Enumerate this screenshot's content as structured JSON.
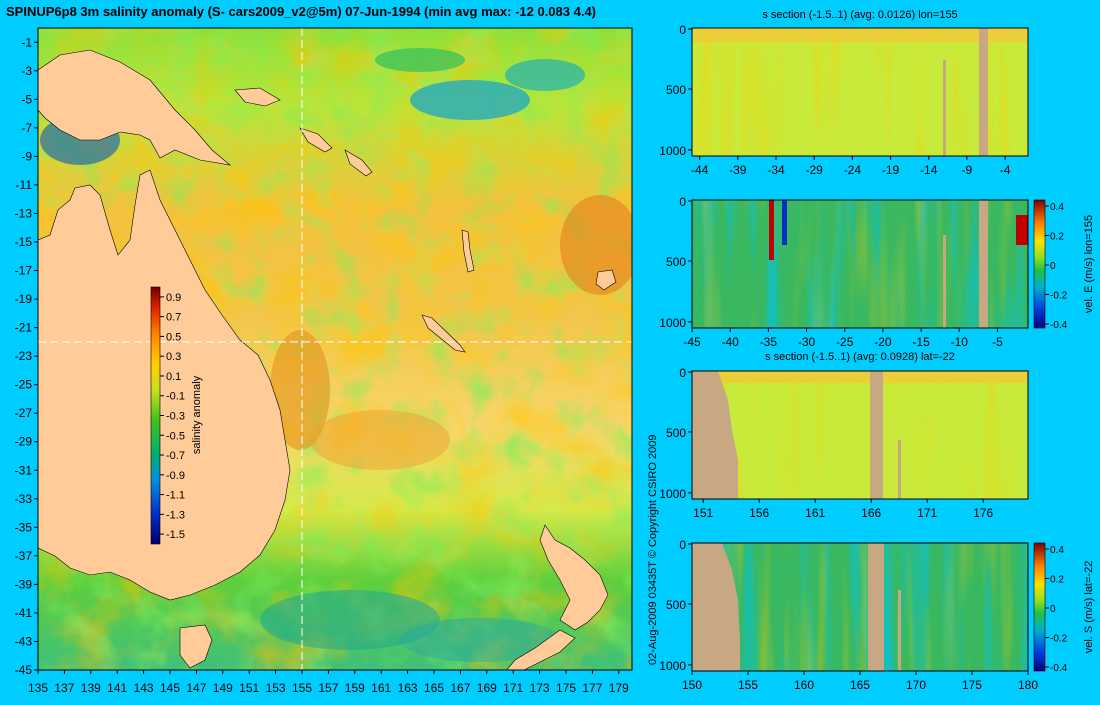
{
  "page": {
    "title": "SPINUP6p8 3m salinity anomaly (S- cars2009_v2@5m) 07-Jun-1994 (min avg max: -12 0.083 4.4)",
    "copyright": "02-Aug-2009 03435T   © Copyright CSIRO 2009",
    "background": "#00cdff",
    "land_color": "#ffcc99",
    "section_land_color": "#c8a882"
  },
  "chart_data": [
    {
      "id": "map",
      "type": "heatmap",
      "title": "SPINUP6p8 3m salinity anomaly (S- cars2009_v2@5m) 07-Jun-1994 (min avg max: -12 0.083 4.4)",
      "xlabel": "",
      "ylabel": "",
      "x_ticks": [
        135,
        137,
        139,
        141,
        143,
        145,
        147,
        149,
        151,
        153,
        155,
        157,
        159,
        161,
        163,
        165,
        167,
        169,
        171,
        173,
        175,
        177,
        179
      ],
      "y_ticks": [
        -1,
        -3,
        -5,
        -7,
        -9,
        -11,
        -13,
        -15,
        -17,
        -19,
        -21,
        -23,
        -25,
        -27,
        -29,
        -31,
        -33,
        -35,
        -37,
        -39,
        -41,
        -43,
        -45
      ],
      "xlim": [
        135,
        180
      ],
      "ylim": [
        -45,
        0
      ],
      "crosshair": {
        "lon": 155,
        "lat": -22
      },
      "colorbar": {
        "label": "salinity anomaly",
        "ticks": [
          "0.9",
          "0.7",
          "0.5",
          "0.3",
          "0.1",
          "-0.1",
          "-0.3",
          "-0.5",
          "-0.7",
          "-0.9",
          "-1.1",
          "-1.3",
          "-1.5"
        ],
        "range": [
          -1.6,
          1.0
        ]
      }
    },
    {
      "id": "sec1",
      "type": "heatmap",
      "title": "s section (-1.5..1) (avg: 0.0126) lon=155",
      "x_ticks": [
        -44,
        -39,
        -34,
        -29,
        -24,
        -19,
        -14,
        -9,
        -4
      ],
      "y_ticks": [
        0,
        500,
        1000
      ],
      "xlim": [
        -45,
        -1
      ],
      "ylim": [
        1050,
        0
      ]
    },
    {
      "id": "sec2",
      "type": "heatmap",
      "title": "",
      "x_ticks": [
        -45,
        -40,
        -35,
        -30,
        -25,
        -20,
        -15,
        -10,
        -5
      ],
      "y_ticks": [
        0,
        500,
        1000
      ],
      "xlim": [
        -45,
        -1
      ],
      "ylim": [
        1050,
        0
      ],
      "colorbar": {
        "label": "vel. E (m/s) lon=155",
        "ticks": [
          "0.4",
          "0.2",
          "0",
          "-0.2",
          "-0.4"
        ],
        "range": [
          -0.4,
          0.4
        ]
      }
    },
    {
      "id": "sec3",
      "type": "heatmap",
      "title": "s section (-1.5..1) (avg: 0.0928) lat=-22",
      "x_ticks": [
        151,
        156,
        161,
        166,
        171,
        176
      ],
      "y_ticks": [
        0,
        500,
        1000
      ],
      "xlim": [
        150,
        180
      ],
      "ylim": [
        1050,
        0
      ]
    },
    {
      "id": "sec4",
      "type": "heatmap",
      "title": "",
      "x_ticks": [
        150,
        155,
        160,
        165,
        170,
        175,
        180
      ],
      "y_ticks": [
        0,
        500,
        1000
      ],
      "xlim": [
        150,
        180
      ],
      "ylim": [
        1050,
        0
      ],
      "colorbar": {
        "label": "vel. S (m/s) lat=-22",
        "ticks": [
          "0.4",
          "0.2",
          "0",
          "-0.2",
          "-0.4"
        ],
        "range": [
          -0.4,
          0.4
        ]
      }
    }
  ]
}
